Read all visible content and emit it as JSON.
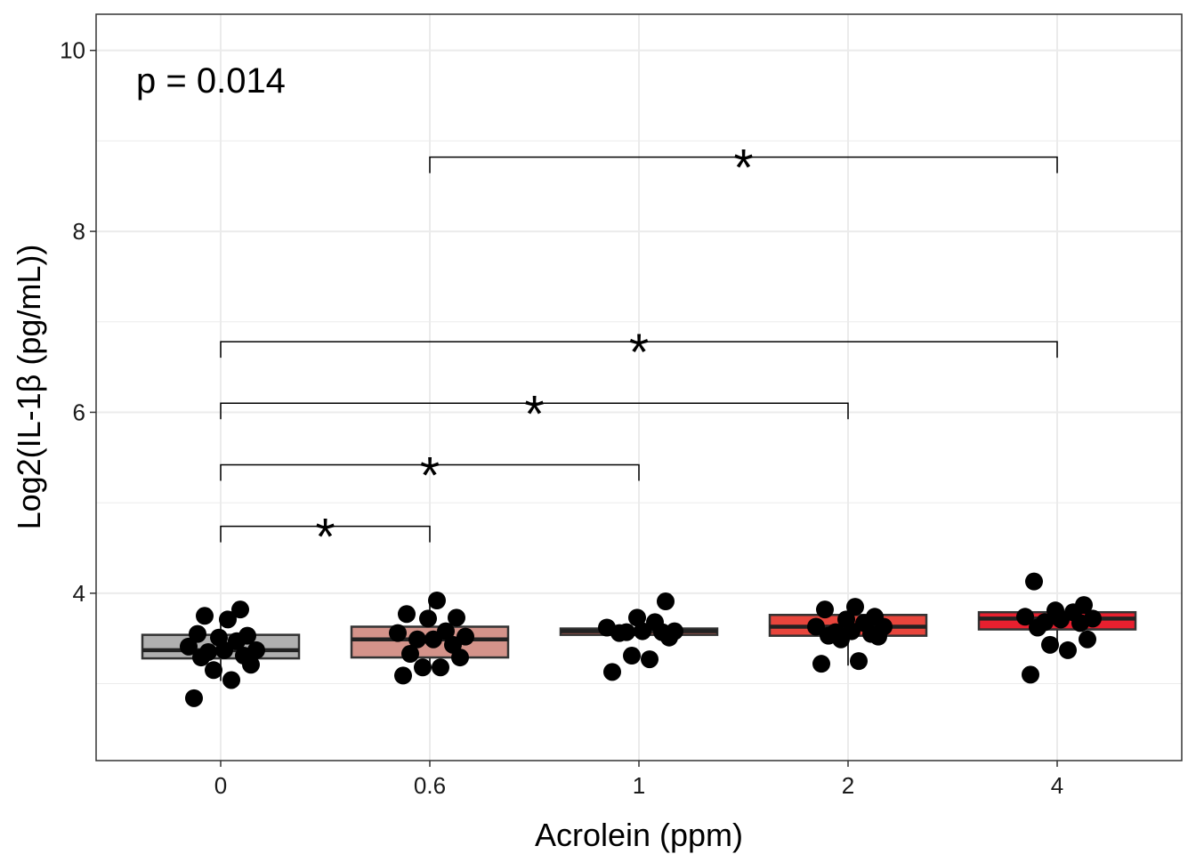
{
  "chart_data": {
    "type": "box",
    "xlabel": "Acrolein (ppm)",
    "ylabel": "Log2(IL-1β  (pg/mL))",
    "ylim": [
      2.15,
      10.4
    ],
    "yticks": [
      4,
      6,
      8,
      10
    ],
    "categories": [
      "0",
      "0.6",
      "1",
      "2",
      "4"
    ],
    "annotation": "p = 0.014",
    "grid": true,
    "legend": "none",
    "colors": [
      "#b0b0b0",
      "#d4938a",
      "#d9675a",
      "#e8453c",
      "#e8202f"
    ],
    "boxes": [
      {
        "q1": 3.28,
        "median": 3.37,
        "q3": 3.54,
        "whisker_low": 3.03,
        "whisker_high": 3.75
      },
      {
        "q1": 3.29,
        "median": 3.49,
        "q3": 3.63,
        "whisker_low": 3.15,
        "whisker_high": 3.9
      },
      {
        "q1": 3.54,
        "median": 3.58,
        "q3": 3.61,
        "whisker_low": 3.54,
        "whisker_high": 3.61
      },
      {
        "q1": 3.53,
        "median": 3.63,
        "q3": 3.76,
        "whisker_low": 3.2,
        "whisker_high": 3.87
      },
      {
        "q1": 3.6,
        "median": 3.72,
        "q3": 3.79,
        "whisker_low": 3.43,
        "whisker_high": 3.79
      }
    ],
    "points": [
      [
        2.84,
        3.04,
        3.15,
        3.21,
        3.29,
        3.31,
        3.35,
        3.37,
        3.37,
        3.41,
        3.47,
        3.51,
        3.53,
        3.55,
        3.71,
        3.75,
        3.82
      ],
      [
        3.09,
        3.18,
        3.18,
        3.29,
        3.33,
        3.43,
        3.49,
        3.49,
        3.52,
        3.56,
        3.58,
        3.72,
        3.73,
        3.77,
        3.92
      ],
      [
        3.13,
        3.27,
        3.31,
        3.51,
        3.56,
        3.57,
        3.57,
        3.58,
        3.58,
        3.62,
        3.68,
        3.73,
        3.91
      ],
      [
        3.22,
        3.25,
        3.49,
        3.52,
        3.53,
        3.55,
        3.57,
        3.58,
        3.63,
        3.63,
        3.67,
        3.71,
        3.74,
        3.82,
        3.85
      ],
      [
        3.1,
        3.37,
        3.43,
        3.49,
        3.62,
        3.67,
        3.68,
        3.71,
        3.72,
        3.74,
        3.79,
        3.81,
        3.87,
        4.13
      ]
    ],
    "comparisons": [
      {
        "from": "0",
        "to": "0.6",
        "y": 4.74,
        "label": "*"
      },
      {
        "from": "0",
        "to": "1",
        "y": 5.42,
        "label": "*"
      },
      {
        "from": "0",
        "to": "2",
        "y": 6.1,
        "label": "*"
      },
      {
        "from": "0",
        "to": "4",
        "y": 6.78,
        "label": "*"
      },
      {
        "from": "0.6",
        "to": "4",
        "y": 8.82,
        "label": "*"
      }
    ]
  }
}
